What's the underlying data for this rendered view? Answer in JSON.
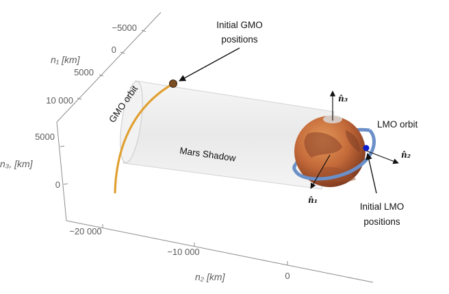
{
  "figure": {
    "annotations": {
      "gmo_positions": [
        "Initial GMO",
        "positions"
      ],
      "lmo_positions": [
        "Initial LMO",
        "positions"
      ],
      "gmo_orbit": "GMO orbit",
      "lmo_orbit": "LMO orbit",
      "mars_shadow": "Mars Shadow"
    },
    "vectors": {
      "n1": "n̂₁",
      "n2": "n̂₂",
      "n3": "n̂₃"
    },
    "axes": {
      "n1": {
        "label": "n₁ [km]",
        "ticks": [
          "−5000",
          "0",
          "5000",
          "10 000"
        ]
      },
      "n3": {
        "label": "n₃, [km]",
        "ticks": [
          "5000",
          "0"
        ]
      },
      "n2": {
        "label": "n₂ [km]",
        "ticks": [
          "−20 000",
          "−10 000",
          "0"
        ]
      }
    },
    "colors": {
      "gmo_orbit": "#e0a030",
      "lmo_orbit": "#6b8fc8",
      "shadow_fill": "#efefef",
      "mars": "#c06a3a",
      "lmo_sat": "#0b1fd0",
      "axis": "#8a8a8a"
    }
  }
}
